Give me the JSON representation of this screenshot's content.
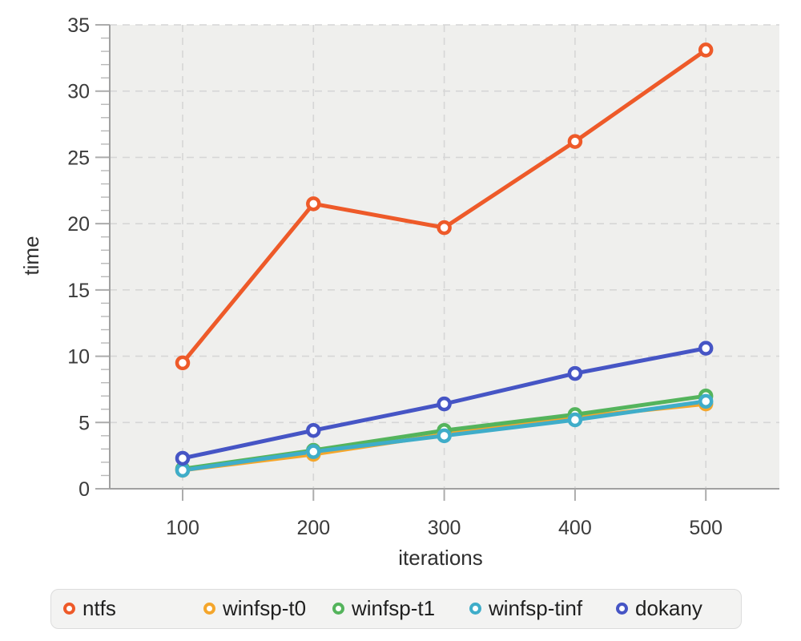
{
  "axes": {
    "x_label": "iterations",
    "y_label": "time"
  },
  "chart_data": {
    "type": "line",
    "title": "",
    "xlabel": "iterations",
    "ylabel": "time",
    "x": [
      100,
      200,
      300,
      400,
      500
    ],
    "x_ticks": [
      100,
      200,
      300,
      400,
      500
    ],
    "y_ticks": [
      0,
      5,
      10,
      15,
      20,
      25,
      30,
      35
    ],
    "ylim": [
      0,
      35
    ],
    "xlim": [
      44,
      555
    ],
    "grid": "dashed-major-both-axes",
    "minor_y_tick_step": 1,
    "marker": "open-circle",
    "legend_position": "bottom",
    "plot_background": "#efefed",
    "series": [
      {
        "name": "ntfs",
        "color": "#ee5a29",
        "values": [
          9.5,
          21.5,
          19.7,
          26.2,
          33.1
        ]
      },
      {
        "name": "winfsp-t0",
        "color": "#f4a62c",
        "values": [
          1.4,
          2.6,
          4.1,
          5.4,
          6.4
        ]
      },
      {
        "name": "winfsp-t1",
        "color": "#54b45c",
        "values": [
          1.5,
          2.9,
          4.4,
          5.6,
          7.0
        ]
      },
      {
        "name": "winfsp-tinf",
        "color": "#3fadc9",
        "values": [
          1.4,
          2.8,
          4.0,
          5.2,
          6.6
        ]
      },
      {
        "name": "dokany",
        "color": "#4655c5",
        "values": [
          2.3,
          4.4,
          6.4,
          8.7,
          10.6
        ]
      }
    ]
  }
}
